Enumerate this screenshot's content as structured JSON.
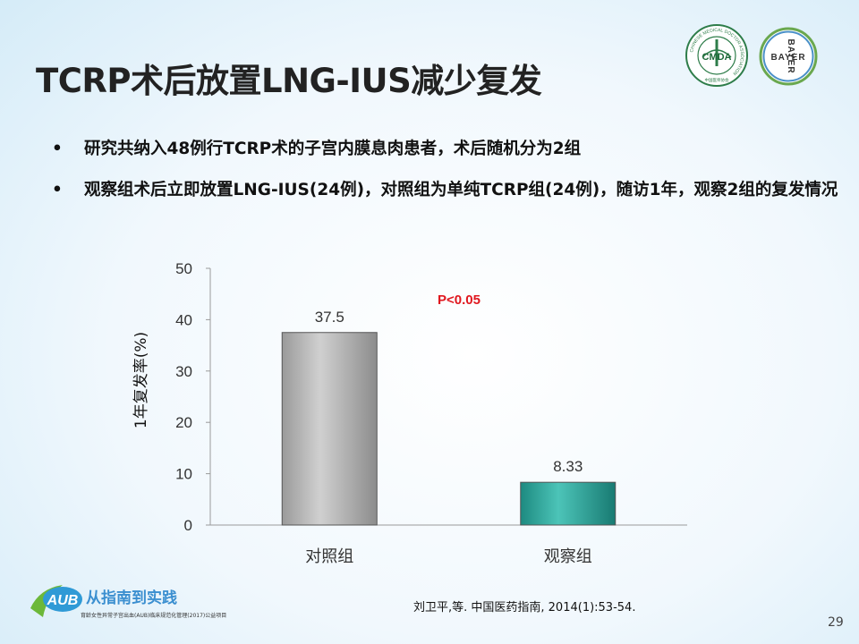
{
  "slide": {
    "title": "TCRP术后放置LNG-IUS减少复发",
    "bullets": [
      "研究共纳入48例行TCRP术的子宫内膜息肉患者，术后随机分为2组",
      "观察组术后立即放置LNG-IUS(24例)，对照组为单纯TCRP组(24例)，随访1年，观察2组的复发情况"
    ],
    "bullet_marker": "•",
    "citation": "刘卫平,等. 中国医药指南, 2014(1):53-54.",
    "page_number": "29",
    "logos": {
      "cmda": {
        "main": "CMDA",
        "ring": "CHINESE MEDICAL DOCTOR ASSOCIATION",
        "sub": "中国医师协会"
      },
      "bayer": {
        "vertical": "BAYER",
        "horizontal": "BAYER"
      },
      "footer": {
        "badge": "AUB",
        "main": "从指南到实践",
        "sub": "育龄女性异常子宫出血(AUB)临床规范化管理(2017)公益项目"
      }
    }
  },
  "chart_data": {
    "type": "bar",
    "categories": [
      "对照组",
      "观察组"
    ],
    "values": [
      37.5,
      8.33
    ],
    "value_labels": [
      "37.5",
      "8.33"
    ],
    "bar_colors": [
      "#a6a6a6",
      "#2a9f94"
    ],
    "ylabel": "1年复发率(%)",
    "ylim": [
      0,
      50
    ],
    "yticks": [
      0,
      10,
      20,
      30,
      40,
      50
    ],
    "annotation": "P<0.05",
    "annotation_color": "#e0171e",
    "grid": false,
    "legend": "none"
  }
}
